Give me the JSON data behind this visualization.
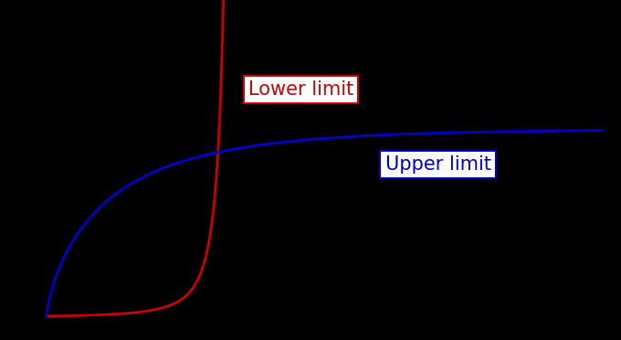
{
  "background_color": "#000000",
  "lower_limit_color": "#cc0000",
  "upper_limit_color": "#0000cc",
  "lower_label": "Lower limit",
  "upper_label": "Upper limit",
  "lower_label_color": "#cc0000",
  "upper_label_color": "#0000cc",
  "label_bg_color": "#ffffff",
  "lower_label_box_color": "#cc0000",
  "upper_label_box_color": "#0000cc",
  "figsize": [
    6.8,
    3.72
  ],
  "dpi": 100
}
